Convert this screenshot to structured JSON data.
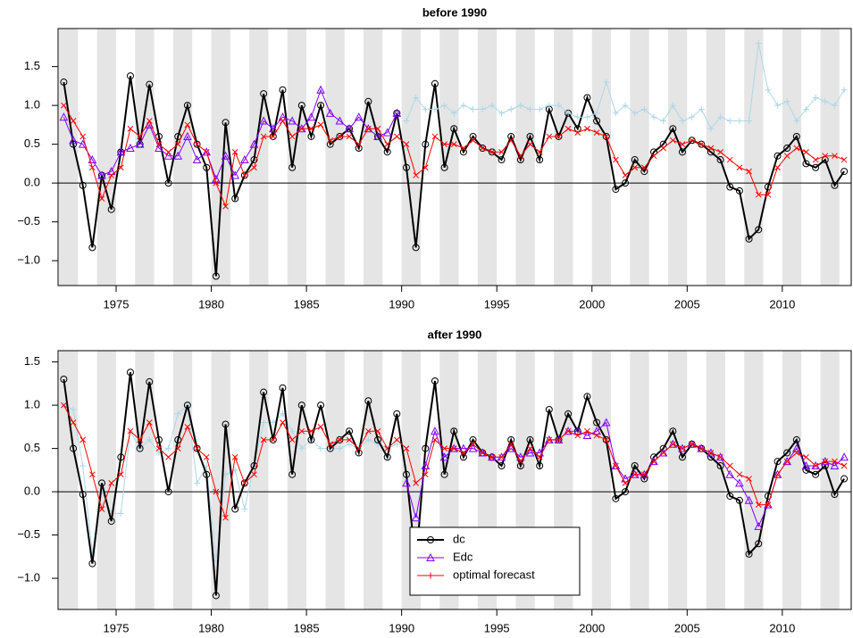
{
  "chart_data": [
    {
      "type": "line",
      "title": "before 1990",
      "x": [
        1972.25,
        1972.75,
        1973.25,
        1973.75,
        1974.25,
        1974.75,
        1975.25,
        1975.75,
        1976.25,
        1976.75,
        1977.25,
        1977.75,
        1978.25,
        1978.75,
        1979.25,
        1979.75,
        1980.25,
        1980.75,
        1981.25,
        1981.75,
        1982.25,
        1982.75,
        1983.25,
        1983.75,
        1984.25,
        1984.75,
        1985.25,
        1985.75,
        1986.25,
        1986.75,
        1987.25,
        1987.75,
        1988.25,
        1988.75,
        1989.25,
        1989.75,
        1990.25,
        1990.75,
        1991.25,
        1991.75,
        1992.25,
        1992.75,
        1993.25,
        1993.75,
        1994.25,
        1994.75,
        1995.25,
        1995.75,
        1996.25,
        1996.75,
        1997.25,
        1997.75,
        1998.25,
        1998.75,
        1999.25,
        1999.75,
        2000.25,
        2000.75,
        2001.25,
        2001.75,
        2002.25,
        2002.75,
        2003.25,
        2003.75,
        2004.25,
        2004.75,
        2005.25,
        2005.75,
        2006.25,
        2006.75,
        2007.25,
        2007.75,
        2008.25,
        2008.75,
        2009.25,
        2009.75,
        2010.25,
        2010.75,
        2011.25,
        2011.75,
        2012.25,
        2012.75,
        2013.25
      ],
      "series": [
        {
          "name": "dc",
          "color": "#000000",
          "marker": "circle",
          "width": 2,
          "values": [
            1.3,
            0.5,
            -0.03,
            -0.83,
            0.1,
            -0.34,
            0.4,
            1.38,
            0.5,
            1.27,
            0.6,
            0.0,
            0.6,
            1.0,
            0.5,
            0.2,
            -1.2,
            0.78,
            -0.2,
            0.1,
            0.3,
            1.15,
            0.6,
            1.2,
            0.2,
            1.0,
            0.6,
            1.0,
            0.5,
            0.6,
            0.7,
            0.45,
            1.05,
            0.6,
            0.4,
            0.9,
            0.2,
            -0.83,
            0.5,
            1.28,
            0.2,
            0.7,
            0.4,
            0.6,
            0.45,
            0.4,
            0.3,
            0.6,
            0.3,
            0.6,
            0.3,
            0.95,
            0.6,
            0.9,
            0.7,
            1.1,
            0.8,
            0.6,
            -0.08,
            0.0,
            0.3,
            0.15,
            0.4,
            0.5,
            0.7,
            0.4,
            0.55,
            0.5,
            0.4,
            0.3,
            -0.05,
            -0.1,
            -0.72,
            -0.6,
            -0.05,
            0.35,
            0.45,
            0.6,
            0.25,
            0.2,
            0.3,
            -0.03,
            0.15
          ]
        },
        {
          "name": "Edc",
          "color": "#7f00ff",
          "marker": "triangle",
          "width": 1,
          "values": [
            0.85,
            0.55,
            0.5,
            0.3,
            0.1,
            0.15,
            0.4,
            0.45,
            0.5,
            0.75,
            0.45,
            0.35,
            0.35,
            0.6,
            0.3,
            0.4,
            0.05,
            0.35,
            0.1,
            0.3,
            0.5,
            0.8,
            0.7,
            0.85,
            0.8,
            0.7,
            0.85,
            1.2,
            0.9,
            0.8,
            0.7,
            0.85,
            0.7,
            0.6,
            0.65,
            0.9,
            null,
            null,
            null,
            null,
            null,
            null,
            null,
            null,
            null,
            null,
            null,
            null,
            null,
            null,
            null,
            null,
            null,
            null,
            null,
            null,
            null,
            null,
            null,
            null,
            null,
            null,
            null,
            null,
            null,
            null,
            null,
            null,
            null,
            null,
            null,
            null,
            null,
            null,
            null,
            null,
            null,
            null,
            null,
            null,
            null,
            null,
            null
          ]
        },
        {
          "color": "#add8e6",
          "marker": "plus",
          "width": 1,
          "values": [
            null,
            null,
            null,
            null,
            null,
            null,
            null,
            null,
            null,
            null,
            null,
            null,
            null,
            null,
            null,
            null,
            null,
            null,
            null,
            null,
            null,
            null,
            null,
            null,
            null,
            null,
            null,
            null,
            null,
            null,
            null,
            null,
            null,
            null,
            null,
            null,
            0.8,
            1.1,
            0.95,
            0.95,
            1.0,
            0.9,
            1.0,
            0.95,
            0.95,
            1.0,
            0.9,
            0.95,
            1.0,
            0.95,
            0.95,
            1.0,
            1.0,
            0.9,
            0.85,
            0.85,
            0.9,
            1.3,
            0.9,
            1.0,
            0.9,
            0.95,
            0.85,
            0.8,
            1.0,
            0.8,
            0.85,
            0.95,
            0.7,
            0.85,
            0.8,
            0.8,
            0.8,
            1.8,
            1.2,
            1.0,
            1.05,
            0.8,
            0.95,
            1.1,
            1.05,
            1.0,
            1.2
          ]
        },
        {
          "name": "optimal forecast",
          "color": "#ff0000",
          "marker": "x",
          "width": 1,
          "values": [
            1.0,
            0.8,
            0.6,
            0.2,
            -0.2,
            0.1,
            0.2,
            0.7,
            0.6,
            0.8,
            0.5,
            0.4,
            0.5,
            0.75,
            0.5,
            0.4,
            0.0,
            -0.3,
            0.4,
            0.1,
            0.2,
            0.6,
            0.6,
            0.8,
            0.6,
            0.7,
            0.7,
            0.75,
            0.55,
            0.6,
            0.6,
            0.5,
            0.7,
            0.7,
            0.5,
            0.6,
            0.5,
            0.1,
            0.2,
            0.6,
            0.5,
            0.5,
            0.45,
            0.55,
            0.45,
            0.4,
            0.4,
            0.55,
            0.35,
            0.5,
            0.4,
            0.6,
            0.6,
            0.7,
            0.65,
            0.7,
            0.65,
            0.6,
            0.3,
            0.1,
            0.2,
            0.2,
            0.35,
            0.45,
            0.55,
            0.5,
            0.55,
            0.5,
            0.45,
            0.4,
            0.3,
            0.2,
            0.15,
            -0.15,
            -0.15,
            0.2,
            0.35,
            0.45,
            0.4,
            0.3,
            0.35,
            0.35,
            0.3
          ]
        }
      ],
      "xlim": [
        1971.95,
        2013.62
      ],
      "xticks": [
        1975,
        1980,
        1985,
        1990,
        1995,
        2000,
        2005,
        2010
      ],
      "ylim": [
        -1.32,
        1.99
      ],
      "yticks": [
        {
          "value": -1.0,
          "label": "−1.0"
        },
        {
          "value": -0.5,
          "label": "−0.5"
        },
        {
          "value": 0.0,
          "label": "0.0"
        },
        {
          "value": 0.5,
          "label": "0.5"
        },
        {
          "value": 1.0,
          "label": "1.0"
        },
        {
          "value": 1.5,
          "label": "1.5"
        }
      ],
      "shading": true,
      "legend": false
    },
    {
      "type": "line",
      "title": "after 1990",
      "x": [
        1972.25,
        1972.75,
        1973.25,
        1973.75,
        1974.25,
        1974.75,
        1975.25,
        1975.75,
        1976.25,
        1976.75,
        1977.25,
        1977.75,
        1978.25,
        1978.75,
        1979.25,
        1979.75,
        1980.25,
        1980.75,
        1981.25,
        1981.75,
        1982.25,
        1982.75,
        1983.25,
        1983.75,
        1984.25,
        1984.75,
        1985.25,
        1985.75,
        1986.25,
        1986.75,
        1987.25,
        1987.75,
        1988.25,
        1988.75,
        1989.25,
        1989.75,
        1990.25,
        1990.75,
        1991.25,
        1991.75,
        1992.25,
        1992.75,
        1993.25,
        1993.75,
        1994.25,
        1994.75,
        1995.25,
        1995.75,
        1996.25,
        1996.75,
        1997.25,
        1997.75,
        1998.25,
        1998.75,
        1999.25,
        1999.75,
        2000.25,
        2000.75,
        2001.25,
        2001.75,
        2002.25,
        2002.75,
        2003.25,
        2003.75,
        2004.25,
        2004.75,
        2005.25,
        2005.75,
        2006.25,
        2006.75,
        2007.25,
        2007.75,
        2008.25,
        2008.75,
        2009.25,
        2009.75,
        2010.25,
        2010.75,
        2011.25,
        2011.75,
        2012.25,
        2012.75,
        2013.25
      ],
      "series": [
        {
          "color": "#add8e6",
          "marker": "plus",
          "width": 1,
          "values": [
            1.0,
            0.95,
            0.3,
            -0.7,
            0.0,
            -0.25,
            -0.25,
            0.7,
            0.5,
            0.6,
            0.45,
            0.5,
            0.9,
            1.0,
            0.1,
            0.3,
            -0.8,
            0.2,
            0.25,
            -0.2,
            0.3,
            0.8,
            0.8,
            0.9,
            0.7,
            0.5,
            0.6,
            0.5,
            0.5,
            0.5,
            0.55,
            0.5,
            0.6,
            0.55,
            0.5,
            0.55,
            null,
            null,
            null,
            null,
            null,
            null,
            null,
            null,
            null,
            null,
            null,
            null,
            null,
            null,
            null,
            null,
            null,
            null,
            null,
            null,
            null,
            null,
            null,
            null,
            null,
            null,
            null,
            null,
            null,
            null,
            null,
            null,
            null,
            null,
            null,
            null,
            null,
            null,
            null,
            null,
            null,
            null,
            null,
            null,
            null,
            null,
            null
          ]
        },
        {
          "name": "dc",
          "color": "#000000",
          "marker": "circle",
          "width": 2,
          "values": [
            1.3,
            0.5,
            -0.03,
            -0.83,
            0.1,
            -0.34,
            0.4,
            1.38,
            0.5,
            1.27,
            0.6,
            0.0,
            0.6,
            1.0,
            0.5,
            0.2,
            -1.2,
            0.78,
            -0.2,
            0.1,
            0.3,
            1.15,
            0.6,
            1.2,
            0.2,
            1.0,
            0.6,
            1.0,
            0.5,
            0.6,
            0.7,
            0.45,
            1.05,
            0.6,
            0.4,
            0.9,
            0.2,
            -0.83,
            0.5,
            1.28,
            0.2,
            0.7,
            0.4,
            0.6,
            0.45,
            0.4,
            0.3,
            0.6,
            0.3,
            0.6,
            0.3,
            0.95,
            0.6,
            0.9,
            0.7,
            1.1,
            0.8,
            0.6,
            -0.08,
            0.0,
            0.3,
            0.15,
            0.4,
            0.5,
            0.7,
            0.4,
            0.55,
            0.5,
            0.4,
            0.3,
            -0.05,
            -0.1,
            -0.72,
            -0.6,
            -0.05,
            0.35,
            0.45,
            0.6,
            0.25,
            0.2,
            0.3,
            -0.03,
            0.15
          ]
        },
        {
          "name": "Edc",
          "color": "#7f00ff",
          "marker": "triangle",
          "width": 1,
          "values": [
            null,
            null,
            null,
            null,
            null,
            null,
            null,
            null,
            null,
            null,
            null,
            null,
            null,
            null,
            null,
            null,
            null,
            null,
            null,
            null,
            null,
            null,
            null,
            null,
            null,
            null,
            null,
            null,
            null,
            null,
            null,
            null,
            null,
            null,
            null,
            null,
            0.1,
            -0.3,
            0.3,
            0.7,
            0.4,
            0.5,
            0.5,
            0.5,
            0.45,
            0.4,
            0.4,
            0.5,
            0.4,
            0.45,
            0.45,
            0.6,
            0.6,
            0.7,
            0.7,
            0.65,
            0.7,
            0.8,
            0.3,
            0.15,
            0.2,
            0.2,
            0.35,
            0.45,
            0.55,
            0.5,
            0.55,
            0.5,
            0.45,
            0.4,
            0.2,
            0.1,
            -0.1,
            -0.4,
            -0.15,
            0.2,
            0.35,
            0.5,
            0.3,
            0.3,
            0.35,
            0.3,
            0.4
          ]
        },
        {
          "name": "optimal forecast",
          "color": "#ff0000",
          "marker": "x",
          "width": 1,
          "values": [
            1.0,
            0.8,
            0.6,
            0.2,
            -0.2,
            0.1,
            0.2,
            0.7,
            0.6,
            0.8,
            0.5,
            0.4,
            0.5,
            0.75,
            0.5,
            0.4,
            0.0,
            -0.3,
            0.4,
            0.1,
            0.2,
            0.6,
            0.6,
            0.8,
            0.6,
            0.7,
            0.7,
            0.75,
            0.55,
            0.6,
            0.6,
            0.5,
            0.7,
            0.7,
            0.5,
            0.6,
            0.5,
            0.1,
            0.2,
            0.6,
            0.5,
            0.5,
            0.45,
            0.55,
            0.45,
            0.4,
            0.4,
            0.55,
            0.35,
            0.5,
            0.4,
            0.6,
            0.6,
            0.7,
            0.65,
            0.7,
            0.65,
            0.6,
            0.3,
            0.1,
            0.2,
            0.2,
            0.35,
            0.45,
            0.55,
            0.5,
            0.55,
            0.5,
            0.45,
            0.4,
            0.3,
            0.2,
            0.15,
            -0.15,
            -0.15,
            0.2,
            0.35,
            0.45,
            0.4,
            0.3,
            0.35,
            0.35,
            0.3
          ]
        }
      ],
      "xlim": [
        1971.95,
        2013.62
      ],
      "xticks": [
        1975,
        1980,
        1985,
        1990,
        1995,
        2000,
        2005,
        2010
      ],
      "ylim": [
        -1.36,
        1.63
      ],
      "yticks": [
        {
          "value": -1.0,
          "label": "−1.0"
        },
        {
          "value": -0.5,
          "label": "−0.5"
        },
        {
          "value": 0.0,
          "label": "0.0"
        },
        {
          "value": 0.5,
          "label": "0.5"
        },
        {
          "value": 1.0,
          "label": "1.0"
        },
        {
          "value": 1.5,
          "label": "1.5"
        }
      ],
      "shading": true,
      "legend": "bottom"
    }
  ]
}
